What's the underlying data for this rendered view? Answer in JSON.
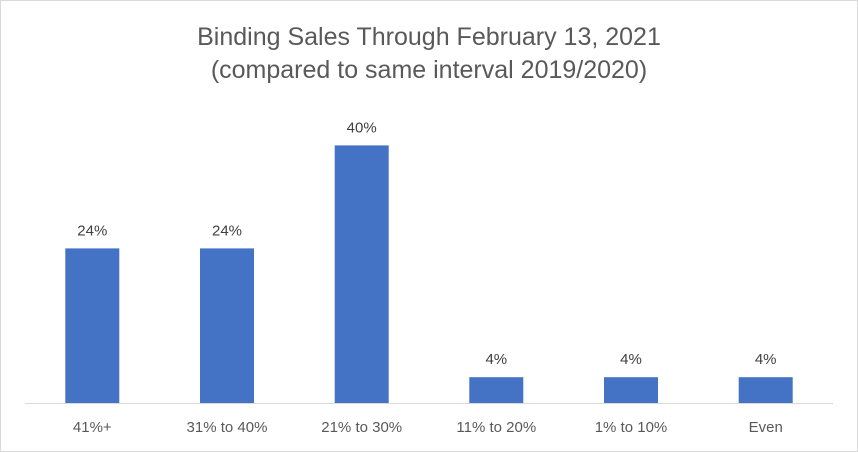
{
  "chart_data": {
    "type": "bar",
    "title": "Binding Sales Through February 13, 2021",
    "subtitle": "(compared to same interval 2019/2020)",
    "categories": [
      "41%+",
      "31% to 40%",
      "21% to 30%",
      "11% to 20%",
      "1% to 10%",
      "Even"
    ],
    "values": [
      24,
      24,
      40,
      4,
      4,
      4
    ],
    "data_labels": [
      "24%",
      "24%",
      "40%",
      "4%",
      "4%",
      "4%"
    ],
    "ylim": [
      0,
      45
    ],
    "grid": false,
    "legend": "none",
    "bar_color": "#4472c4",
    "axis_color": "#d9d9d9"
  }
}
